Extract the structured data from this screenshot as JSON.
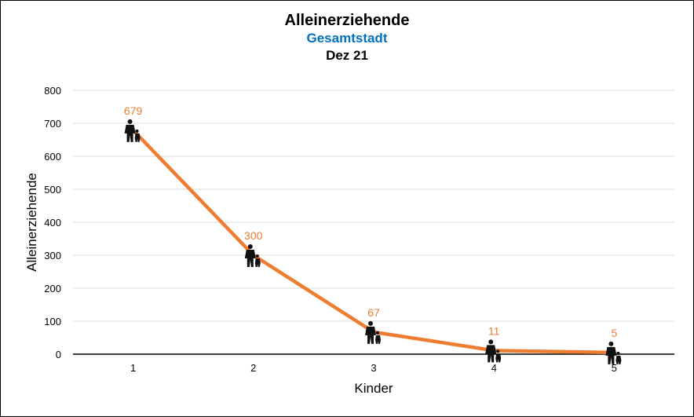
{
  "chart_data": {
    "type": "line",
    "title": "Alleinerziehende",
    "subtitle": "Gesamtstadt",
    "subtitle2": "Dez 21",
    "xlabel": "Kinder",
    "ylabel": "Alleinerziehende",
    "categories": [
      "1",
      "2",
      "3",
      "4",
      "5"
    ],
    "series": [
      {
        "values": [
          679,
          300,
          67,
          11,
          5
        ]
      }
    ],
    "data_labels": [
      "679",
      "300",
      "67",
      "11",
      "5"
    ],
    "ylim": [
      0,
      800
    ],
    "yticks": [
      "0",
      "100",
      "200",
      "300",
      "400",
      "500",
      "600",
      "700",
      "800"
    ],
    "grid": true,
    "marker_icon": "single-parent-with-child-icon",
    "line_color": "#ed7d31",
    "label_color": "#ed7d31",
    "grid_color": "#d9d9d9"
  }
}
